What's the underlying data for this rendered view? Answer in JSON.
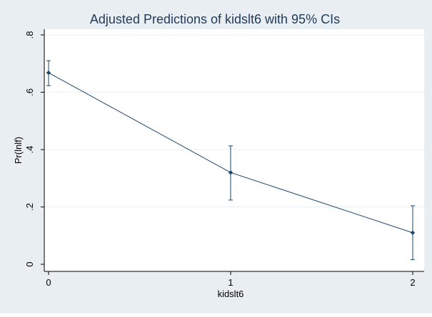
{
  "chart_data": {
    "type": "line",
    "title": "Adjusted Predictions of kidslt6 with 95% CIs",
    "xlabel": "kidslt6",
    "ylabel": "Pr(lnlf)",
    "x": [
      0,
      1,
      2
    ],
    "x_tick_labels": [
      "0",
      "1",
      "2"
    ],
    "y_ticks": [
      0,
      0.2,
      0.4,
      0.6,
      0.8
    ],
    "y_tick_labels": [
      "0",
      ".2",
      ".4",
      ".6",
      ".8"
    ],
    "xlim": [
      0,
      2
    ],
    "ylim": [
      0,
      0.8
    ],
    "grid": "horizontal",
    "series": [
      {
        "values": [
          0.668,
          0.32,
          0.11
        ],
        "ci_lower": [
          0.623,
          0.224,
          0.016
        ],
        "ci_upper": [
          0.71,
          0.413,
          0.204
        ]
      }
    ],
    "colors": {
      "outer_background": "#e9eef3",
      "plot_background": "#ffffff",
      "grid": "#e9eef3",
      "series": "#1a476f",
      "title": "#1e3a5a",
      "axis": "#000000"
    }
  }
}
